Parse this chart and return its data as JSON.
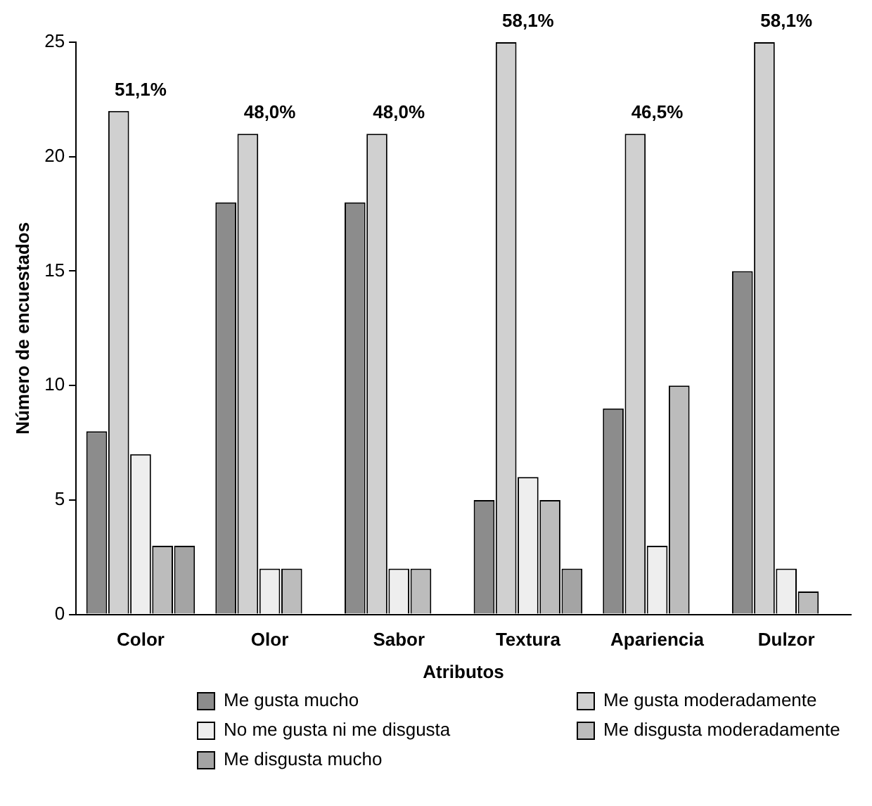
{
  "chart_data": {
    "type": "bar",
    "xlabel": "Atributos",
    "ylabel": "Número de encuestados",
    "categories": [
      "Color",
      "Olor",
      "Sabor",
      "Textura",
      "Apariencia",
      "Dulzor"
    ],
    "series": [
      {
        "name": "Me gusta mucho",
        "color": "#8c8c8c",
        "values": [
          8,
          18,
          18,
          5,
          9,
          15
        ]
      },
      {
        "name": "Me gusta moderadamente",
        "color": "#d0d0d0",
        "values": [
          22,
          21,
          21,
          25,
          21,
          25
        ]
      },
      {
        "name": "No me gusta ni me disgusta",
        "color": "#eeeeee",
        "values": [
          7,
          2,
          2,
          6,
          3,
          2
        ]
      },
      {
        "name": "Me disgusta moderadamente",
        "color": "#bcbcbc",
        "values": [
          3,
          2,
          2,
          5,
          10,
          1
        ]
      },
      {
        "name": "Me disgusta mucho",
        "color": "#a4a4a4",
        "values": [
          3,
          0,
          0,
          2,
          0,
          0
        ]
      }
    ],
    "ylim": [
      0,
      25
    ],
    "yticks": [
      0,
      5,
      10,
      15,
      20,
      25
    ],
    "grid": false,
    "legend": "bottom",
    "annotations": [
      "51,1%",
      "48,0%",
      "48,0%",
      "58,1%",
      "46,5%",
      "58,1%"
    ]
  }
}
